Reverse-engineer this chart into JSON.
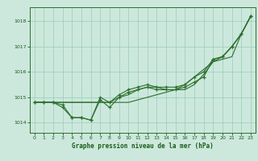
{
  "title": "Graphe pression niveau de la mer (hPa)",
  "background_color": "#cce8dc",
  "plot_bg_color": "#cce8dc",
  "grid_color": "#99ccbb",
  "text_color": "#1a5c1a",
  "line_color": "#2d6e2d",
  "xlim": [
    -0.5,
    23.5
  ],
  "ylim": [
    1013.6,
    1018.55
  ],
  "yticks": [
    1014,
    1015,
    1016,
    1017,
    1018
  ],
  "xticks": [
    0,
    1,
    2,
    3,
    4,
    5,
    6,
    7,
    8,
    9,
    10,
    11,
    12,
    13,
    14,
    15,
    16,
    17,
    18,
    19,
    20,
    21,
    22,
    23
  ],
  "series1": [
    1014.8,
    1014.8,
    1014.8,
    1014.7,
    1014.2,
    1014.2,
    1014.1,
    1014.9,
    1014.6,
    1015.0,
    1015.2,
    1015.3,
    1015.4,
    1015.3,
    1015.3,
    1015.3,
    1015.4,
    1015.6,
    1015.8,
    1016.5,
    1016.6,
    1017.0,
    1017.5,
    1018.2
  ],
  "series2": [
    1014.8,
    1014.8,
    1014.8,
    1014.6,
    1014.2,
    1014.2,
    1014.1,
    1015.0,
    1014.8,
    1015.1,
    1015.3,
    1015.4,
    1015.5,
    1015.4,
    1015.4,
    1015.4,
    1015.5,
    1015.8,
    1016.0,
    1016.5,
    1016.6,
    1017.0,
    1017.5,
    1018.2
  ],
  "series3": [
    1014.8,
    1014.8,
    1014.8,
    1014.8,
    1014.8,
    1014.8,
    1014.8,
    1014.8,
    1014.8,
    1014.8,
    1014.8,
    1014.9,
    1015.0,
    1015.1,
    1015.2,
    1015.3,
    1015.5,
    1015.8,
    1016.1,
    1016.4,
    1016.5,
    1016.6,
    1017.5,
    1018.2
  ],
  "series4": [
    1014.8,
    1014.8,
    1014.8,
    1014.8,
    1014.8,
    1014.8,
    1014.8,
    1014.8,
    1014.8,
    1015.0,
    1015.1,
    1015.3,
    1015.4,
    1015.4,
    1015.3,
    1015.3,
    1015.3,
    1015.5,
    1015.9,
    1016.4,
    1016.6,
    1017.0,
    1017.5,
    1018.2
  ]
}
